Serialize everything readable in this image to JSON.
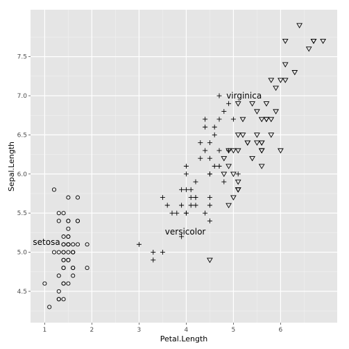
{
  "chart_data": {
    "type": "scatter",
    "xlabel": "Petal.Length",
    "ylabel": "Sepal.Length",
    "xlim": [
      0.7,
      7.2
    ],
    "ylim": [
      4.1,
      8.1
    ],
    "xticks": [
      1,
      2,
      3,
      4,
      5,
      6
    ],
    "yticks": [
      4.5,
      5.0,
      5.5,
      6.0,
      6.5,
      7.0,
      7.5
    ],
    "ytick_labels": [
      "4.5",
      "5.0",
      "5.5",
      "6.0",
      "6.5",
      "7.0",
      "7.5"
    ],
    "grid": true,
    "annotations": [
      {
        "text": "setosa",
        "x": 0.75,
        "y": 5.13
      },
      {
        "text": "versicolor",
        "x": 3.55,
        "y": 5.26
      },
      {
        "text": "virginica",
        "x": 4.85,
        "y": 7.0
      }
    ],
    "series": [
      {
        "shape": "circle",
        "points": [
          [
            1.4,
            5.1
          ],
          [
            1.4,
            4.9
          ],
          [
            1.3,
            4.7
          ],
          [
            1.5,
            4.6
          ],
          [
            1.4,
            5.0
          ],
          [
            1.7,
            5.4
          ],
          [
            1.4,
            4.6
          ],
          [
            1.5,
            5.0
          ],
          [
            1.4,
            4.4
          ],
          [
            1.5,
            4.9
          ],
          [
            1.5,
            5.4
          ],
          [
            1.6,
            4.8
          ],
          [
            1.4,
            4.8
          ],
          [
            1.1,
            4.3
          ],
          [
            1.2,
            5.8
          ],
          [
            1.5,
            5.7
          ],
          [
            1.3,
            5.4
          ],
          [
            1.4,
            5.1
          ],
          [
            1.7,
            5.7
          ],
          [
            1.5,
            5.1
          ],
          [
            1.7,
            5.4
          ],
          [
            1.5,
            5.1
          ],
          [
            1.0,
            4.6
          ],
          [
            1.7,
            5.1
          ],
          [
            1.9,
            4.8
          ],
          [
            1.6,
            5.0
          ],
          [
            1.6,
            5.0
          ],
          [
            1.5,
            5.2
          ],
          [
            1.4,
            5.2
          ],
          [
            1.6,
            4.7
          ],
          [
            1.6,
            4.8
          ],
          [
            1.5,
            5.4
          ],
          [
            1.5,
            5.2
          ],
          [
            1.4,
            5.5
          ],
          [
            1.5,
            4.9
          ],
          [
            1.2,
            5.0
          ],
          [
            1.3,
            5.5
          ],
          [
            1.4,
            4.9
          ],
          [
            1.3,
            4.4
          ],
          [
            1.5,
            5.1
          ],
          [
            1.3,
            5.0
          ],
          [
            1.3,
            4.5
          ],
          [
            1.3,
            4.4
          ],
          [
            1.6,
            5.0
          ],
          [
            1.9,
            5.1
          ],
          [
            1.4,
            4.8
          ],
          [
            1.6,
            5.1
          ],
          [
            1.4,
            4.6
          ],
          [
            1.5,
            5.3
          ],
          [
            1.4,
            5.0
          ]
        ]
      },
      {
        "shape": "plus",
        "points": [
          [
            4.7,
            7.0
          ],
          [
            4.5,
            6.4
          ],
          [
            4.9,
            6.9
          ],
          [
            4.0,
            5.5
          ],
          [
            4.6,
            6.5
          ],
          [
            4.5,
            5.7
          ],
          [
            4.7,
            6.3
          ],
          [
            3.3,
            4.9
          ],
          [
            4.6,
            6.6
          ],
          [
            3.9,
            5.2
          ],
          [
            3.5,
            5.0
          ],
          [
            4.2,
            5.9
          ],
          [
            4.0,
            6.0
          ],
          [
            4.7,
            6.1
          ],
          [
            3.6,
            5.6
          ],
          [
            4.4,
            6.7
          ],
          [
            4.5,
            5.6
          ],
          [
            4.1,
            5.8
          ],
          [
            4.5,
            6.2
          ],
          [
            3.9,
            5.6
          ],
          [
            4.8,
            5.9
          ],
          [
            4.0,
            6.1
          ],
          [
            4.9,
            6.3
          ],
          [
            4.7,
            6.1
          ],
          [
            4.3,
            6.4
          ],
          [
            4.4,
            6.6
          ],
          [
            4.8,
            6.8
          ],
          [
            5.0,
            6.7
          ],
          [
            4.5,
            6.0
          ],
          [
            3.5,
            5.7
          ],
          [
            3.8,
            5.5
          ],
          [
            3.7,
            5.5
          ],
          [
            3.9,
            5.8
          ],
          [
            5.1,
            6.0
          ],
          [
            4.5,
            5.4
          ],
          [
            4.5,
            6.0
          ],
          [
            4.7,
            6.7
          ],
          [
            4.4,
            6.3
          ],
          [
            4.1,
            5.6
          ],
          [
            4.0,
            5.5
          ],
          [
            4.4,
            5.5
          ],
          [
            4.6,
            6.1
          ],
          [
            4.0,
            5.8
          ],
          [
            3.3,
            5.0
          ],
          [
            4.2,
            5.6
          ],
          [
            4.2,
            5.7
          ],
          [
            4.2,
            5.7
          ],
          [
            4.3,
            6.2
          ],
          [
            3.0,
            5.1
          ],
          [
            4.1,
            5.7
          ]
        ]
      },
      {
        "shape": "triangle-down",
        "points": [
          [
            6.0,
            6.3
          ],
          [
            5.1,
            5.8
          ],
          [
            5.9,
            7.1
          ],
          [
            5.6,
            6.3
          ],
          [
            5.8,
            6.5
          ],
          [
            6.6,
            7.6
          ],
          [
            4.5,
            4.9
          ],
          [
            6.3,
            7.3
          ],
          [
            5.8,
            6.7
          ],
          [
            6.1,
            7.2
          ],
          [
            5.1,
            6.5
          ],
          [
            5.3,
            6.4
          ],
          [
            5.5,
            6.8
          ],
          [
            5.0,
            5.7
          ],
          [
            5.1,
            5.8
          ],
          [
            5.3,
            6.4
          ],
          [
            5.5,
            6.5
          ],
          [
            6.7,
            7.7
          ],
          [
            6.9,
            7.7
          ],
          [
            5.0,
            6.0
          ],
          [
            5.7,
            6.9
          ],
          [
            4.9,
            5.6
          ],
          [
            6.7,
            7.7
          ],
          [
            4.9,
            6.3
          ],
          [
            5.7,
            6.7
          ],
          [
            6.0,
            7.2
          ],
          [
            4.8,
            6.2
          ],
          [
            4.9,
            6.1
          ],
          [
            5.6,
            6.4
          ],
          [
            5.8,
            7.2
          ],
          [
            6.1,
            7.4
          ],
          [
            6.4,
            7.9
          ],
          [
            5.6,
            6.4
          ],
          [
            5.1,
            6.3
          ],
          [
            5.6,
            6.1
          ],
          [
            6.1,
            7.7
          ],
          [
            5.6,
            6.3
          ],
          [
            5.5,
            6.4
          ],
          [
            4.8,
            6.0
          ],
          [
            5.4,
            6.9
          ],
          [
            5.6,
            6.7
          ],
          [
            5.1,
            6.9
          ],
          [
            5.1,
            5.8
          ],
          [
            5.9,
            6.8
          ],
          [
            5.7,
            6.7
          ],
          [
            5.2,
            6.7
          ],
          [
            5.0,
            6.3
          ],
          [
            5.2,
            6.5
          ],
          [
            5.4,
            6.2
          ],
          [
            5.1,
            5.9
          ]
        ]
      }
    ]
  }
}
